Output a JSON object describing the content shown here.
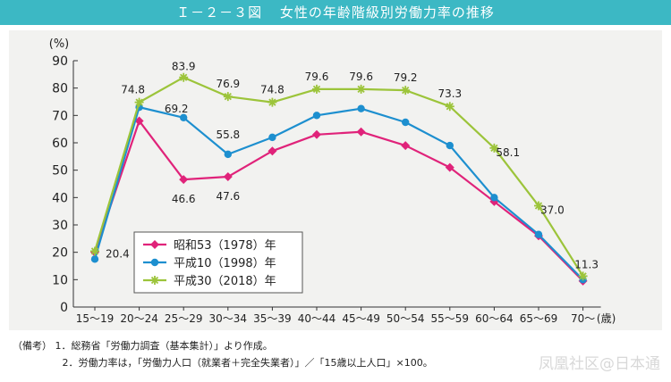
{
  "header": {
    "code": "Ｉ－２－３図",
    "title": "女性の年齢階級別労働力率の推移"
  },
  "chart_data": {
    "type": "line",
    "ylabel": "(%)",
    "xlabel": "(歳)",
    "ylim": [
      0,
      90
    ],
    "yticks": [
      0,
      10,
      20,
      30,
      40,
      50,
      60,
      70,
      80,
      90
    ],
    "categories": [
      "15～19",
      "20～24",
      "25～29",
      "30～34",
      "35～39",
      "40～44",
      "45～49",
      "50～54",
      "55～59",
      "60～64",
      "65～69",
      "70～"
    ],
    "series": [
      {
        "name": "昭和53（1978）年",
        "color": "#e0237a",
        "marker": "diamond",
        "values": [
          20.0,
          68.0,
          46.6,
          47.6,
          57.0,
          63.0,
          64.0,
          59.0,
          51.0,
          38.5,
          26.0,
          9.5
        ]
      },
      {
        "name": "平成10（1998）年",
        "color": "#1d8fcf",
        "marker": "circle",
        "values": [
          17.5,
          73.0,
          69.2,
          55.8,
          62.0,
          70.0,
          72.5,
          67.5,
          59.0,
          40.0,
          26.5,
          10.0
        ]
      },
      {
        "name": "平成30（2018）年",
        "color": "#9cc43a",
        "marker": "star",
        "values": [
          20.4,
          74.8,
          83.9,
          76.9,
          74.8,
          79.6,
          79.6,
          79.2,
          73.3,
          58.1,
          37.0,
          11.3
        ]
      }
    ],
    "data_labels": [
      {
        "series": 2,
        "index": 0,
        "text": "20.4"
      },
      {
        "series": 2,
        "index": 1,
        "text": "74.8"
      },
      {
        "series": 2,
        "index": 2,
        "text": "83.9"
      },
      {
        "series": 2,
        "index": 3,
        "text": "76.9"
      },
      {
        "series": 2,
        "index": 4,
        "text": "74.8"
      },
      {
        "series": 2,
        "index": 5,
        "text": "79.6"
      },
      {
        "series": 2,
        "index": 6,
        "text": "79.6"
      },
      {
        "series": 2,
        "index": 7,
        "text": "79.2"
      },
      {
        "series": 2,
        "index": 8,
        "text": "73.3"
      },
      {
        "series": 2,
        "index": 9,
        "text": "58.1"
      },
      {
        "series": 2,
        "index": 10,
        "text": "37.0"
      },
      {
        "series": 2,
        "index": 11,
        "text": "11.3"
      },
      {
        "series": 1,
        "index": 2,
        "text": "69.2"
      },
      {
        "series": 1,
        "index": 3,
        "text": "55.8"
      },
      {
        "series": 0,
        "index": 2,
        "text": "46.6"
      },
      {
        "series": 0,
        "index": 3,
        "text": "47.6"
      }
    ]
  },
  "notes": {
    "prefix": "（備考）",
    "lines": [
      "1．総務省「労働力調査（基本集計）」より作成。",
      "2．労働力率は，「労働力人口（就業者＋完全失業者）」／「15歳以上人口」×100。"
    ]
  },
  "watermark": "凤凰社区@日本通"
}
